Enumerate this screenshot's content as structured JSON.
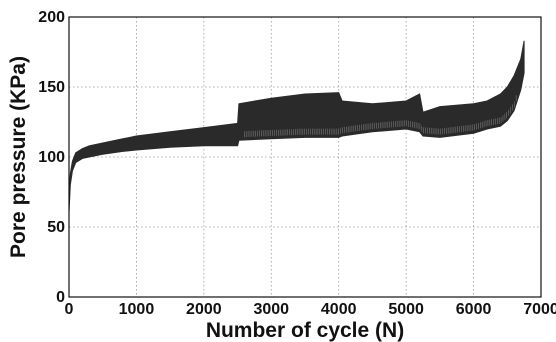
{
  "chart_data": {
    "type": "line",
    "title": "",
    "xlabel": "Number of cycle (N)",
    "ylabel": "Pore pressure (KPa)",
    "xlim": [
      0,
      7000
    ],
    "ylim": [
      0,
      200
    ],
    "xticks": [
      0,
      1000,
      2000,
      3000,
      4000,
      5000,
      6000,
      7000
    ],
    "yticks": [
      0,
      50,
      100,
      150,
      200
    ],
    "grid": true,
    "legend": "none",
    "series_color": "#2a2a2a",
    "series": [
      {
        "name": "",
        "x": [
          0,
          20,
          50,
          100,
          200,
          300,
          500,
          800,
          1000,
          1500,
          2000,
          2500,
          2520,
          3000,
          3500,
          4000,
          4050,
          4500,
          5000,
          5200,
          5250,
          5500,
          6000,
          6200,
          6400,
          6500,
          6600,
          6700,
          6750
        ],
        "upper": [
          72,
          88,
          97,
          103,
          106,
          108,
          110,
          113,
          115,
          118,
          121,
          124,
          138,
          142,
          145,
          146,
          140,
          138,
          140,
          145,
          132,
          136,
          138,
          140,
          145,
          150,
          158,
          170,
          183
        ],
        "lower": [
          60,
          80,
          90,
          96,
          99,
          100,
          102,
          104,
          105,
          107,
          108,
          108,
          112,
          113,
          114,
          114,
          115,
          118,
          120,
          118,
          115,
          114,
          117,
          120,
          122,
          126,
          133,
          148,
          160
        ]
      }
    ]
  }
}
